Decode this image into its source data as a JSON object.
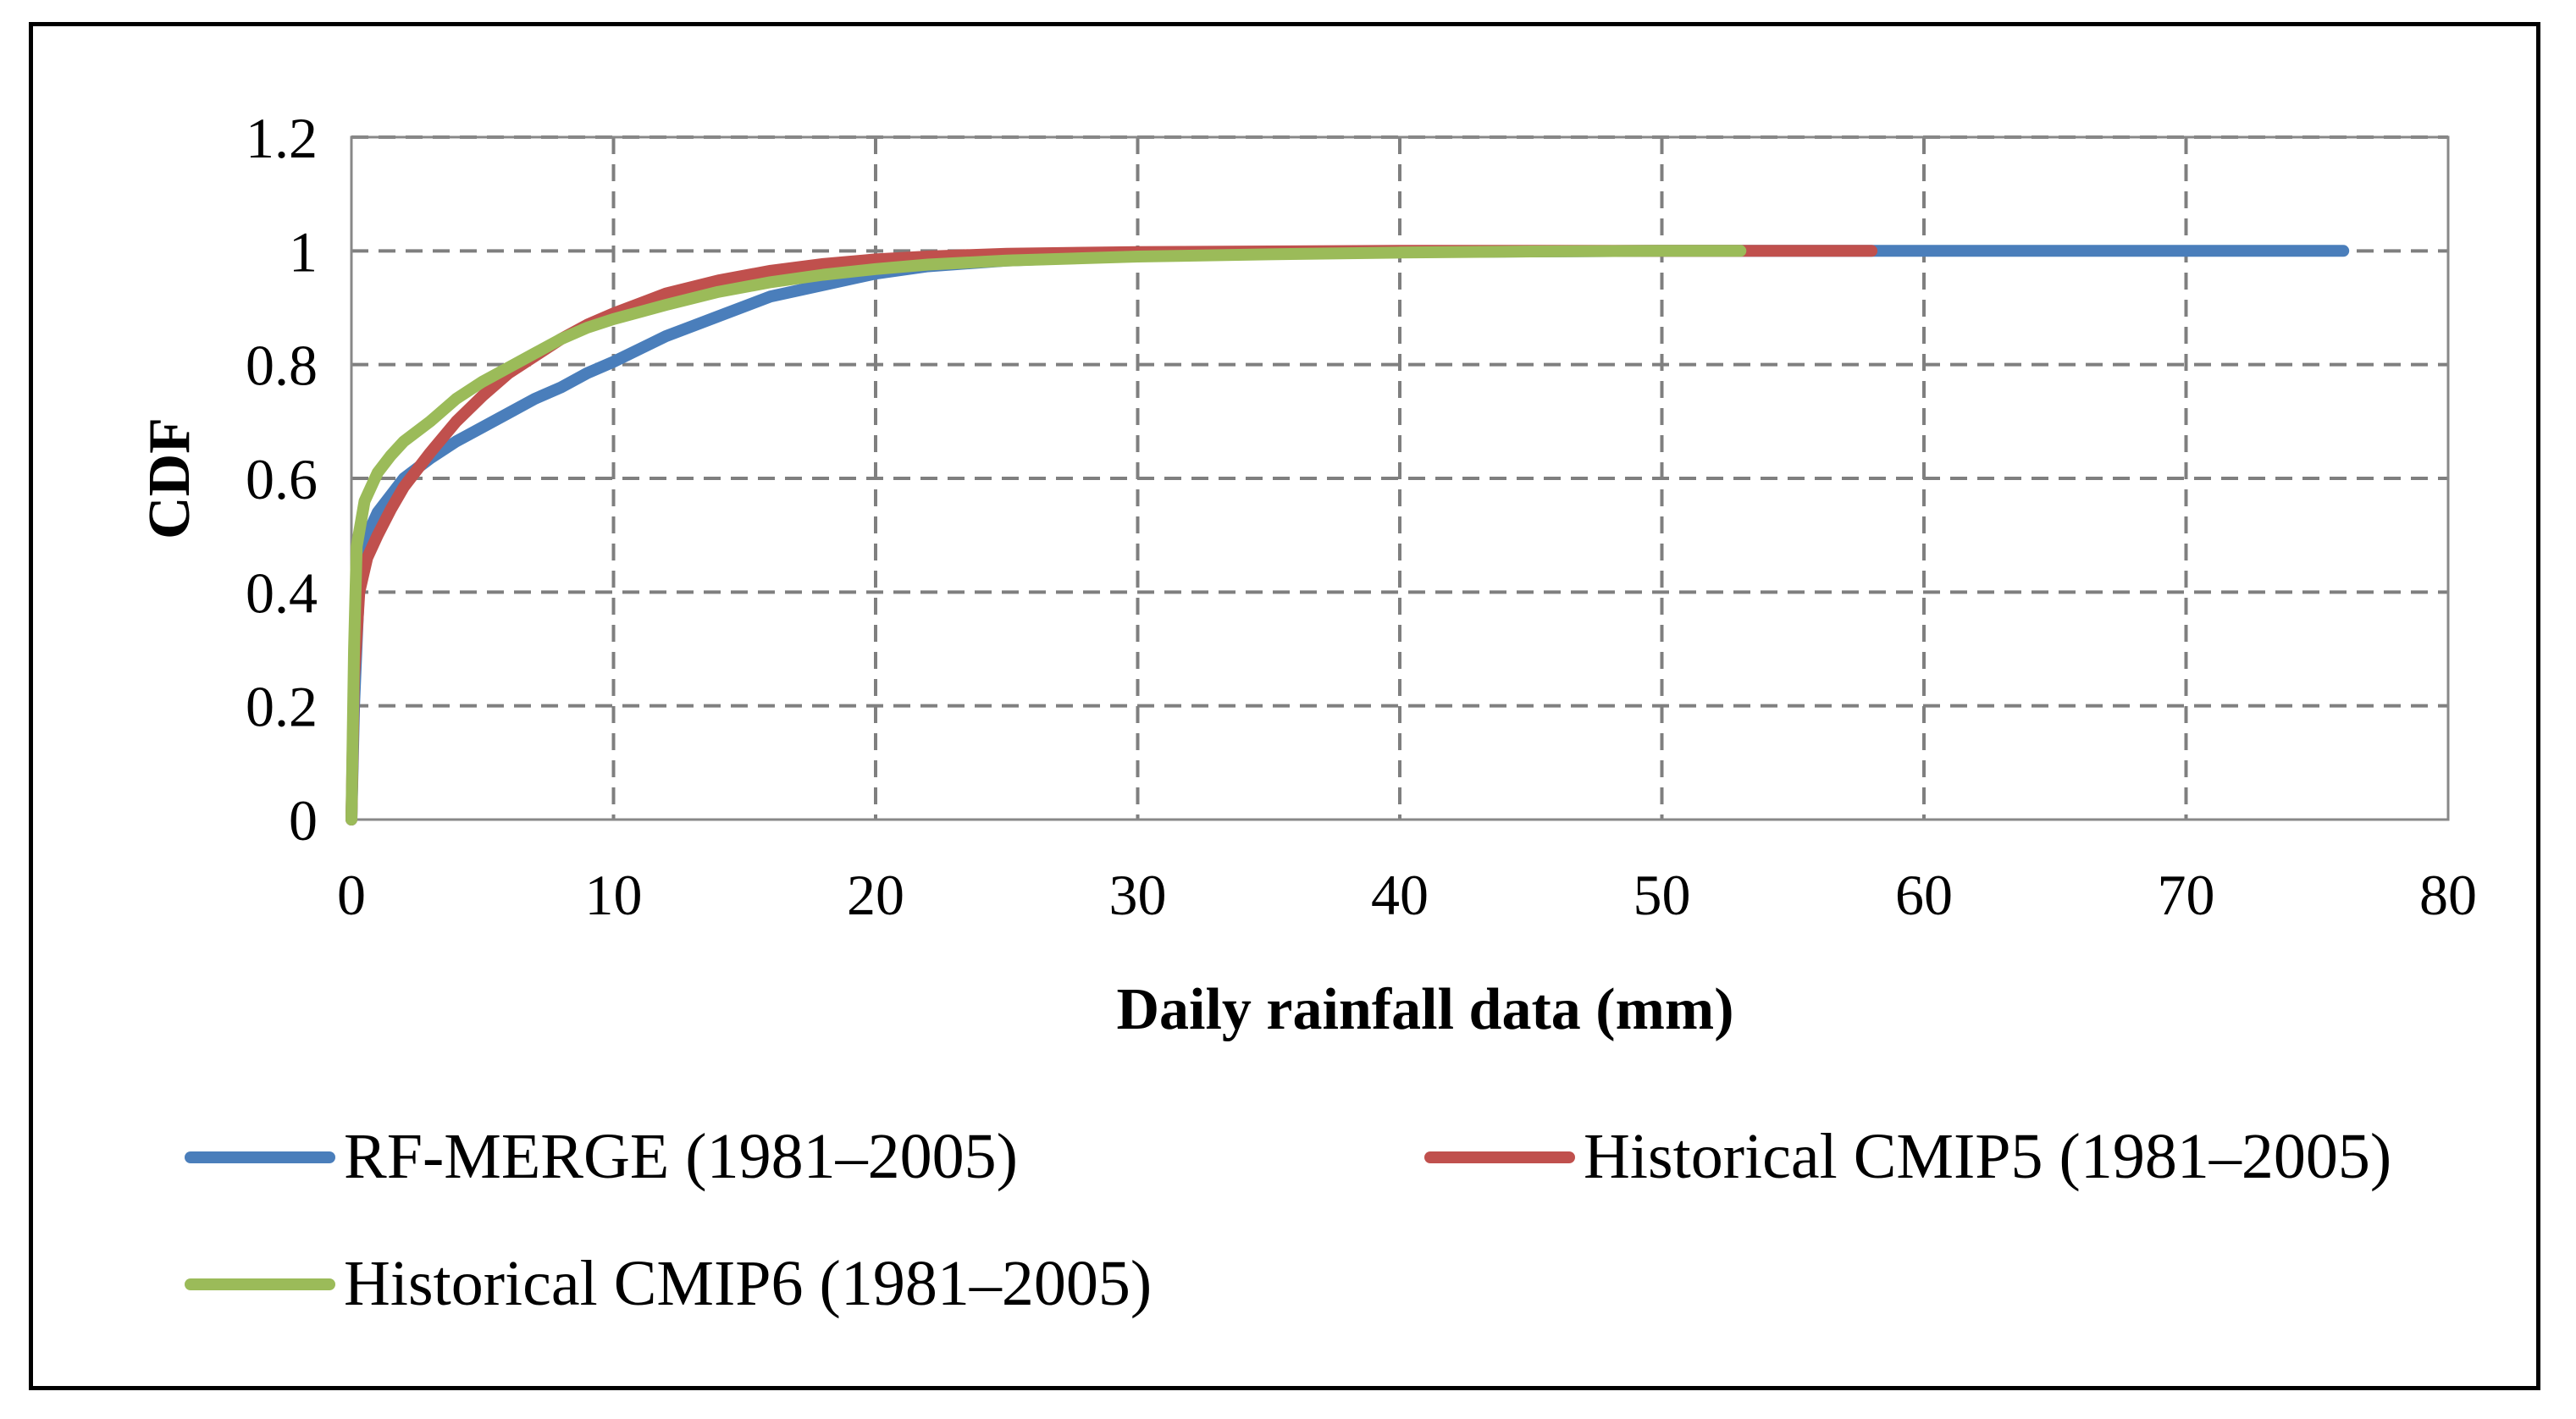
{
  "chart_data": {
    "type": "line",
    "title": "",
    "xlabel": "Daily rainfall data (mm)",
    "ylabel": "CDF",
    "xlim": [
      0,
      80
    ],
    "ylim": [
      0,
      1.2
    ],
    "xticks": [
      0,
      10,
      20,
      30,
      40,
      50,
      60,
      70,
      80
    ],
    "yticks": [
      0,
      0.2,
      0.4,
      0.6,
      0.8,
      1,
      1.2
    ],
    "xtick_labels": [
      "0",
      "10",
      "20",
      "30",
      "40",
      "50",
      "60",
      "70",
      "80"
    ],
    "ytick_labels": [
      "0",
      "0.2",
      "0.4",
      "0.6",
      "0.8",
      "1",
      "1.2"
    ],
    "grid": true,
    "legend_position": "bottom",
    "series": [
      {
        "name": "RF-MERGE (1981–2005)",
        "color": "#4a7ebb",
        "x": [
          0,
          0.1,
          0.3,
          0.6,
          1,
          1.5,
          2,
          3,
          4,
          5,
          6,
          7,
          8,
          9,
          10,
          12,
          14,
          16,
          18,
          20,
          22,
          25,
          30,
          35,
          40,
          50,
          60,
          70,
          76
        ],
        "y": [
          0,
          0.2,
          0.42,
          0.5,
          0.54,
          0.57,
          0.6,
          0.635,
          0.665,
          0.69,
          0.715,
          0.74,
          0.76,
          0.785,
          0.805,
          0.85,
          0.885,
          0.92,
          0.94,
          0.96,
          0.973,
          0.983,
          0.992,
          0.996,
          0.998,
          1,
          1,
          1,
          1
        ]
      },
      {
        "name": "Historical CMIP5 (1981–2005)",
        "color": "#c0504d",
        "x": [
          0,
          0.1,
          0.3,
          0.6,
          1,
          1.5,
          2,
          3,
          4,
          5,
          6,
          7,
          8,
          9,
          10,
          12,
          14,
          16,
          18,
          20,
          22,
          25,
          30,
          35,
          40,
          50,
          58
        ],
        "y": [
          0,
          0.25,
          0.4,
          0.46,
          0.5,
          0.545,
          0.585,
          0.645,
          0.7,
          0.745,
          0.785,
          0.815,
          0.845,
          0.87,
          0.89,
          0.925,
          0.948,
          0.965,
          0.977,
          0.985,
          0.99,
          0.995,
          0.998,
          0.999,
          1,
          1,
          1
        ]
      },
      {
        "name": "Historical CMIP6 (1981–2005)",
        "color": "#9bbb59",
        "x": [
          0,
          0.1,
          0.2,
          0.5,
          1,
          1.5,
          2,
          3,
          4,
          5,
          6,
          7,
          8,
          9,
          10,
          12,
          14,
          16,
          18,
          20,
          22,
          25,
          30,
          35,
          40,
          45,
          50,
          53
        ],
        "y": [
          0,
          0.3,
          0.48,
          0.56,
          0.61,
          0.64,
          0.665,
          0.7,
          0.74,
          0.77,
          0.795,
          0.82,
          0.845,
          0.865,
          0.88,
          0.905,
          0.928,
          0.945,
          0.958,
          0.968,
          0.976,
          0.983,
          0.99,
          0.994,
          0.997,
          0.999,
          1,
          1
        ]
      }
    ]
  }
}
